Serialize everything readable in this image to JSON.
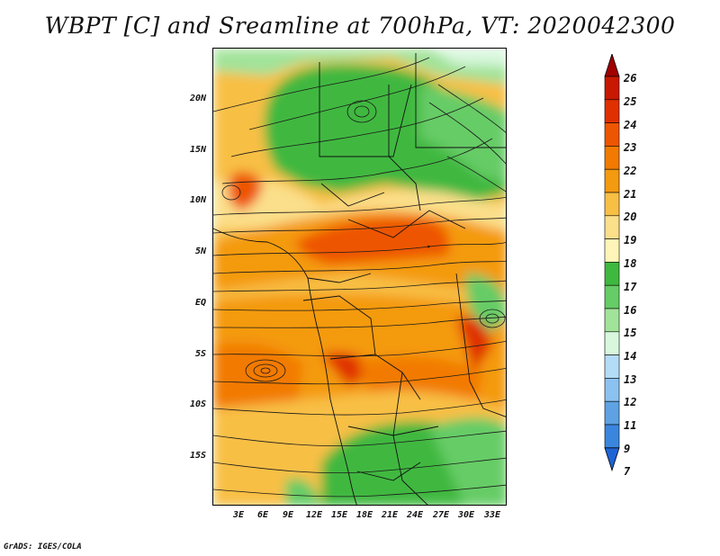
{
  "title": "WBPT [C] and Sreamline at 700hPa, VT: 2020042300",
  "credit": "GrADS: IGES/COLA",
  "map": {
    "lat_ticks": [
      "20N",
      "15N",
      "10N",
      "5N",
      "EQ",
      "5S",
      "10S",
      "15S"
    ],
    "lon_ticks": [
      "3E",
      "6E",
      "9E",
      "12E",
      "15E",
      "18E",
      "21E",
      "24E",
      "27E",
      "30E",
      "33E"
    ]
  },
  "colorbar": {
    "labels": [
      "26",
      "25",
      "24",
      "23",
      "22",
      "21",
      "20",
      "19",
      "18",
      "17",
      "16",
      "15",
      "14",
      "13",
      "12",
      "11",
      "9",
      "7"
    ],
    "colors": [
      "#a00000",
      "#c81800",
      "#e03000",
      "#ee5500",
      "#f27a00",
      "#f49a10",
      "#f8bf45",
      "#fbdf8a",
      "#fff5b8",
      "#3fb83f",
      "#66cc66",
      "#a2e39a",
      "#d8f7dc",
      "#b4dcf6",
      "#8cc2ef",
      "#5ea2e3",
      "#3a86de",
      "#1e64d6"
    ]
  }
}
